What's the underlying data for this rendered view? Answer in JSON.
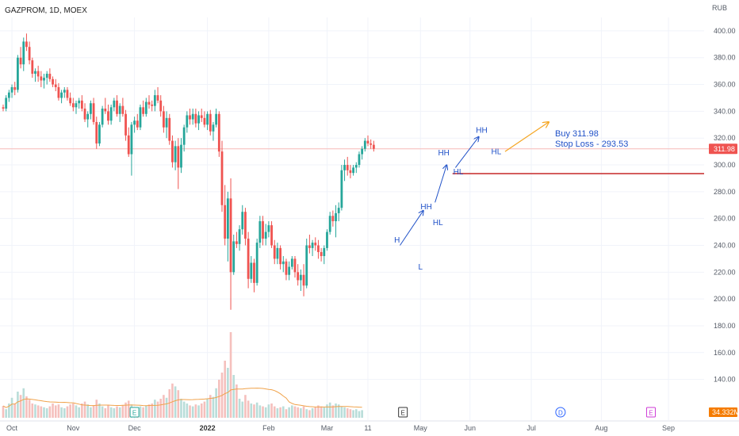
{
  "header": {
    "symbol": "GAZPROM, 1D, MOEX",
    "currency": "RUB"
  },
  "colors": {
    "up": "#26a69a",
    "down": "#ef5350",
    "vol_up": "#b9ddd9",
    "vol_down": "#f5c0bd",
    "ma": "#f0a24a",
    "arrow_blue": "#2152c8",
    "arrow_orange": "#f5a623",
    "stop_line": "#c62828",
    "price_line": "#f7b9b7",
    "price_badge": "#ef5350",
    "vol_badge": "#f57c00"
  },
  "chart_data": {
    "type": "candlestick",
    "title": "GAZPROM, 1D, MOEX",
    "ylabel": "RUB",
    "ylim": [
      125,
      410
    ],
    "y_ticks": [
      140,
      160,
      180,
      200,
      220,
      240,
      260,
      280,
      300,
      320,
      340,
      360,
      380,
      400
    ],
    "y_tick_labels": [
      "140.00",
      "160.00",
      "180.00",
      "200.00",
      "220.00",
      "240.00",
      "260.00",
      "280.00",
      "300.00",
      "320.00",
      "340.00",
      "360.00",
      "380.00",
      "400.00"
    ],
    "x_labels": [
      {
        "label": "Oct",
        "t": 3
      },
      {
        "label": "Nov",
        "t": 24
      },
      {
        "label": "Dec",
        "t": 45
      },
      {
        "label": "2022",
        "t": 70,
        "bold": true
      },
      {
        "label": "Feb",
        "t": 91
      },
      {
        "label": "Mar",
        "t": 111
      },
      {
        "label": "11",
        "t": 125
      },
      {
        "label": "May",
        "t": 143
      },
      {
        "label": "Jun",
        "t": 160
      },
      {
        "label": "Jul",
        "t": 181
      },
      {
        "label": "Aug",
        "t": 205
      },
      {
        "label": "Sep",
        "t": 228
      }
    ],
    "candles": [
      [
        343,
        345,
        340,
        342
      ],
      [
        342,
        352,
        340,
        350
      ],
      [
        350,
        356,
        347,
        354
      ],
      [
        354,
        360,
        350,
        358
      ],
      [
        358,
        362,
        352,
        356
      ],
      [
        356,
        382,
        354,
        380
      ],
      [
        380,
        388,
        372,
        375
      ],
      [
        375,
        395,
        370,
        392
      ],
      [
        392,
        398,
        385,
        388
      ],
      [
        388,
        392,
        375,
        378
      ],
      [
        378,
        380,
        365,
        368
      ],
      [
        368,
        372,
        362,
        370
      ],
      [
        370,
        374,
        362,
        366
      ],
      [
        366,
        370,
        358,
        363
      ],
      [
        363,
        368,
        357,
        365
      ],
      [
        365,
        370,
        360,
        368
      ],
      [
        368,
        372,
        362,
        364
      ],
      [
        364,
        366,
        358,
        360
      ],
      [
        360,
        364,
        355,
        358
      ],
      [
        358,
        361,
        348,
        350
      ],
      [
        350,
        356,
        346,
        354
      ],
      [
        354,
        358,
        350,
        356
      ],
      [
        356,
        358,
        348,
        350
      ],
      [
        350,
        354,
        344,
        346
      ],
      [
        346,
        350,
        340,
        343
      ],
      [
        343,
        348,
        338,
        346
      ],
      [
        346,
        350,
        342,
        348
      ],
      [
        348,
        352,
        340,
        342
      ],
      [
        342,
        346,
        332,
        334
      ],
      [
        334,
        340,
        328,
        338
      ],
      [
        338,
        348,
        334,
        346
      ],
      [
        346,
        350,
        330,
        332
      ],
      [
        332,
        336,
        312,
        316
      ],
      [
        316,
        332,
        314,
        330
      ],
      [
        330,
        344,
        328,
        342
      ],
      [
        342,
        350,
        338,
        340
      ],
      [
        340,
        345,
        330,
        333
      ],
      [
        333,
        345,
        330,
        343
      ],
      [
        343,
        350,
        340,
        348
      ],
      [
        348,
        352,
        336,
        338
      ],
      [
        338,
        346,
        332,
        344
      ],
      [
        344,
        350,
        336,
        338
      ],
      [
        338,
        341,
        318,
        322
      ],
      [
        322,
        328,
        306,
        308
      ],
      [
        308,
        332,
        292,
        330
      ],
      [
        330,
        336,
        324,
        333
      ],
      [
        333,
        338,
        326,
        328
      ],
      [
        328,
        345,
        326,
        343
      ],
      [
        343,
        348,
        336,
        338
      ],
      [
        338,
        350,
        336,
        347
      ],
      [
        347,
        352,
        342,
        345
      ],
      [
        345,
        348,
        340,
        344
      ],
      [
        344,
        356,
        340,
        352
      ],
      [
        352,
        358,
        346,
        348
      ],
      [
        348,
        352,
        336,
        340
      ],
      [
        340,
        344,
        324,
        328
      ],
      [
        328,
        340,
        320,
        335
      ],
      [
        335,
        338,
        315,
        318
      ],
      [
        318,
        322,
        298,
        302
      ],
      [
        302,
        318,
        296,
        314
      ],
      [
        314,
        320,
        282,
        298
      ],
      [
        298,
        320,
        294,
        315
      ],
      [
        315,
        330,
        310,
        328
      ],
      [
        328,
        340,
        324,
        337
      ],
      [
        337,
        342,
        330,
        334
      ],
      [
        334,
        342,
        330,
        338
      ],
      [
        338,
        342,
        328,
        331
      ],
      [
        331,
        340,
        326,
        337
      ],
      [
        337,
        342,
        332,
        335
      ],
      [
        335,
        340,
        328,
        330
      ],
      [
        330,
        340,
        326,
        338
      ],
      [
        338,
        341,
        322,
        325
      ],
      [
        325,
        332,
        318,
        330
      ],
      [
        330,
        342,
        328,
        338
      ],
      [
        338,
        340,
        306,
        310
      ],
      [
        310,
        318,
        265,
        270
      ],
      [
        270,
        285,
        240,
        245
      ],
      [
        245,
        280,
        228,
        275
      ],
      [
        275,
        290,
        192,
        220
      ],
      [
        220,
        248,
        218,
        243
      ],
      [
        243,
        250,
        238,
        241
      ],
      [
        241,
        255,
        236,
        252
      ],
      [
        252,
        270,
        248,
        265
      ],
      [
        265,
        268,
        240,
        245
      ],
      [
        245,
        250,
        208,
        215
      ],
      [
        215,
        232,
        212,
        227
      ],
      [
        227,
        230,
        205,
        212
      ],
      [
        212,
        245,
        210,
        242
      ],
      [
        242,
        262,
        238,
        258
      ],
      [
        258,
        262,
        240,
        245
      ],
      [
        245,
        256,
        240,
        250
      ],
      [
        250,
        258,
        246,
        255
      ],
      [
        255,
        258,
        238,
        240
      ],
      [
        240,
        244,
        226,
        230
      ],
      [
        230,
        242,
        226,
        238
      ],
      [
        238,
        240,
        222,
        226
      ],
      [
        226,
        232,
        220,
        228
      ],
      [
        228,
        230,
        214,
        218
      ],
      [
        218,
        228,
        214,
        224
      ],
      [
        224,
        232,
        222,
        230
      ],
      [
        230,
        232,
        216,
        220
      ],
      [
        220,
        226,
        210,
        214
      ],
      [
        214,
        222,
        206,
        218
      ],
      [
        218,
        226,
        202,
        210
      ],
      [
        210,
        245,
        208,
        240
      ],
      [
        240,
        248,
        234,
        238
      ],
      [
        238,
        244,
        232,
        242
      ],
      [
        242,
        246,
        236,
        240
      ],
      [
        240,
        244,
        230,
        235
      ],
      [
        235,
        238,
        228,
        232
      ],
      [
        232,
        240,
        226,
        238
      ],
      [
        238,
        252,
        236,
        250
      ],
      [
        250,
        265,
        248,
        262
      ],
      [
        262,
        266,
        254,
        258
      ],
      [
        258,
        270,
        246,
        264
      ],
      [
        264,
        272,
        258,
        268
      ],
      [
        268,
        300,
        266,
        296
      ],
      [
        296,
        304,
        288,
        300
      ],
      [
        300,
        306,
        292,
        296
      ],
      [
        296,
        300,
        290,
        294
      ],
      [
        294,
        300,
        292,
        298
      ],
      [
        298,
        302,
        294,
        300
      ],
      [
        300,
        310,
        298,
        308
      ],
      [
        308,
        314,
        304,
        312
      ],
      [
        312,
        320,
        310,
        318
      ],
      [
        318,
        322,
        314,
        316
      ],
      [
        316,
        319,
        312,
        315
      ],
      [
        315,
        318,
        310,
        312
      ]
    ],
    "volume": [
      25,
      18,
      30,
      42,
      30,
      55,
      48,
      62,
      45,
      38,
      30,
      28,
      26,
      24,
      22,
      20,
      24,
      30,
      26,
      28,
      22,
      20,
      24,
      28,
      30,
      26,
      22,
      30,
      34,
      28,
      22,
      26,
      38,
      30,
      24,
      20,
      26,
      22,
      20,
      24,
      22,
      26,
      32,
      36,
      28,
      22,
      20,
      24,
      22,
      26,
      28,
      30,
      38,
      34,
      40,
      48,
      42,
      60,
      72,
      66,
      58,
      40,
      34,
      30,
      26,
      24,
      28,
      26,
      30,
      34,
      40,
      48,
      44,
      62,
      80,
      95,
      120,
      105,
      180,
      90,
      70,
      40,
      34,
      48,
      36,
      30,
      28,
      32,
      26,
      24,
      22,
      28,
      30,
      24,
      20,
      22,
      24,
      18,
      22,
      26,
      24,
      22,
      20,
      24,
      18,
      16,
      20,
      22,
      26,
      24,
      22,
      28,
      32,
      26,
      30,
      28,
      24,
      22,
      20,
      18,
      16,
      18,
      14,
      16
    ],
    "volume_ma_label": "34.332M",
    "last_price": 311.98,
    "last_price_label": "311.98",
    "stop_loss": 293.53
  },
  "annotations": {
    "pivots": [
      {
        "text": "H",
        "t": 135,
        "p": 242
      },
      {
        "text": "L",
        "t": 143,
        "p": 222
      },
      {
        "text": "HH",
        "t": 145,
        "p": 267
      },
      {
        "text": "HL",
        "t": 149,
        "p": 255
      },
      {
        "text": "HH",
        "t": 151,
        "p": 307
      },
      {
        "text": "HL",
        "t": 156,
        "p": 293
      },
      {
        "text": "HH",
        "t": 164,
        "p": 324
      },
      {
        "text": "HL",
        "t": 169,
        "p": 308
      }
    ],
    "trade_buy": "Buy 311.98",
    "trade_stop": "Stop Loss - 293.53"
  },
  "events": [
    {
      "letter": "E",
      "t": 45,
      "color": "#26a69a"
    },
    {
      "letter": "E",
      "t": 137,
      "color": "#333333"
    },
    {
      "letter": "D",
      "t": 191,
      "color": "#2962ff"
    },
    {
      "letter": "E",
      "t": 222,
      "color": "#ce3ad6"
    }
  ]
}
